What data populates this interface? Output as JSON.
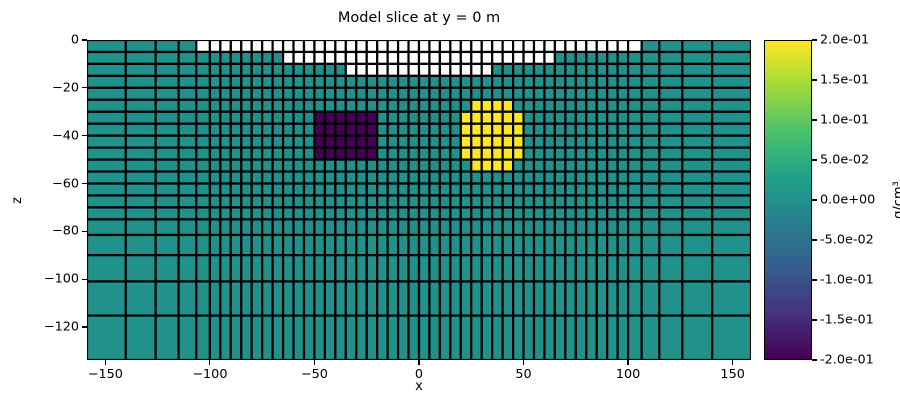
{
  "title": "Model slice at y = 0 m",
  "axes": {
    "xlabel": "x",
    "ylabel": "z",
    "x_tick_labels": [
      "−150",
      "−100",
      "−50",
      "0",
      "50",
      "100",
      "150"
    ],
    "x_tick_values": [
      -150,
      -100,
      -50,
      0,
      50,
      100,
      150
    ],
    "y_tick_labels": [
      "0",
      "−20",
      "−40",
      "−60",
      "−80",
      "−100",
      "−120"
    ],
    "y_tick_values": [
      0,
      -20,
      -40,
      -60,
      -80,
      -100,
      -120
    ]
  },
  "colorbar": {
    "tick_labels": [
      "2.0e-01",
      "1.5e-01",
      "1.0e-01",
      "5.0e-02",
      "0.0e+00",
      "-5.0e-02",
      "-1.0e-01",
      "-1.5e-01",
      "-2.0e-01"
    ],
    "tick_values": [
      0.2,
      0.15,
      0.1,
      0.05,
      0.0,
      -0.05,
      -0.1,
      -0.15,
      -0.2
    ],
    "unit_label": "g/cm³",
    "vmin": -0.2,
    "vmax": 0.2,
    "colormap": "viridis",
    "gradient_stops": [
      "#440154",
      "#46327e",
      "#365c8d",
      "#277f8e",
      "#1fa187",
      "#4ac16d",
      "#a0da39",
      "#fde725"
    ]
  },
  "chart_data": {
    "type": "heatmap",
    "title": "Model slice at y = 0 m",
    "xlabel": "x",
    "ylabel": "z",
    "xlim": [
      -158.78,
      158.78
    ],
    "zlim": [
      -133.78,
      0
    ],
    "clim": [
      -0.2,
      0.2
    ],
    "grid": true,
    "mesh": {
      "x_pad_widths": [
        18.56,
        14.28,
        10.99,
        8.45,
        6.5
      ],
      "x_core_cells": 40,
      "x_cell_size": 5,
      "z_core_cells": 15,
      "z_cell_size": 5,
      "z_pad_widths": [
        6.5,
        8.45,
        10.99,
        14.28,
        18.56
      ]
    },
    "background_value": 0.0,
    "regions": {
      "air_rows": [
        {
          "z_top": 0,
          "z_bot": -5,
          "x_min": -106.5,
          "x_max": 106.5
        },
        {
          "z_top": -5,
          "z_bot": -10,
          "x_min": -65,
          "x_max": 65
        },
        {
          "z_top": -10,
          "z_bot": -15,
          "x_min": -35,
          "x_max": 35
        }
      ],
      "negative_block": {
        "value": -0.2,
        "x_min": -50,
        "x_max": -20,
        "z_min": -50,
        "z_max": -30
      },
      "positive_disc": {
        "value": 0.2,
        "center_x": 35,
        "center_z": -40,
        "radius": 15
      }
    },
    "colors": {
      "background": "#21918c",
      "air": "#ffffff",
      "negative_block": "#440154",
      "positive_disc": "#fde725",
      "grid_line": "#000000"
    }
  }
}
